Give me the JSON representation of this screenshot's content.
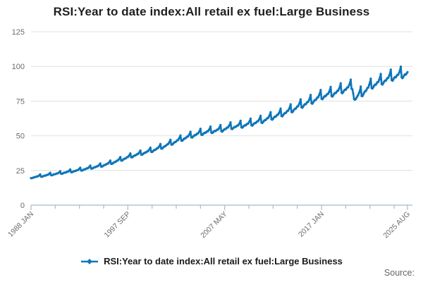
{
  "title": "RSI:Year to date index:All retail ex fuel:Large Business",
  "legend": {
    "label": "RSI:Year to date index:All retail ex fuel:Large Business"
  },
  "source_label": "Source:",
  "colors": {
    "line": "#0f76b9",
    "grid": "#e0e0e0",
    "axis": "#a9b8cc",
    "tick_text": "#6b6b6b",
    "title_text": "#1f1f1f",
    "legend_text": "#1a1a1a",
    "source_text": "#666666"
  },
  "chart_data": {
    "type": "line",
    "title": "RSI:Year to date index:All retail ex fuel:Large Business",
    "xlabel": "",
    "ylabel": "",
    "frequency": "monthly",
    "x_range": [
      "1988 JAN",
      "2025 AUG"
    ],
    "total_months": 452,
    "ylim": [
      0,
      125
    ],
    "y_ticks": [
      0,
      25,
      50,
      75,
      100,
      125
    ],
    "grid": "horizontal",
    "legend_position": "bottom-center",
    "x_axis": {
      "labeled_ticks": [
        {
          "month_index": 0,
          "label": "1988 JAN"
        },
        {
          "month_index": 116,
          "label": "1997 SEP"
        },
        {
          "month_index": 232,
          "label": "2007 MAY"
        },
        {
          "month_index": 348,
          "label": "2017 JAN"
        },
        {
          "month_index": 451,
          "label": "2025 AUG"
        }
      ],
      "minor_tick_interval_months": 29
    },
    "series": [
      {
        "name": "RSI:Year to date index:All retail ex fuel:Large Business",
        "color": "#0f76b9",
        "start": "1988 JAN",
        "end": "2025 AUG",
        "january_trend_by_year": {
          "1988": 20.3,
          "1989": 21.4,
          "1990": 22.5,
          "1991": 23.6,
          "1992": 24.8,
          "1993": 26.0,
          "1994": 27.5,
          "1995": 29.0,
          "1996": 31.0,
          "1997": 33.5,
          "1998": 36.0,
          "1999": 38.0,
          "2000": 40.0,
          "2001": 42.5,
          "2002": 45.5,
          "2003": 48.5,
          "2004": 51.0,
          "2005": 53.0,
          "2006": 54.5,
          "2007": 55.5,
          "2008": 57.5,
          "2009": 58.5,
          "2010": 60.0,
          "2011": 62.0,
          "2012": 64.5,
          "2013": 67.0,
          "2014": 70.0,
          "2015": 73.5,
          "2016": 76.5,
          "2017": 80.0,
          "2018": 82.0,
          "2019": 84.5,
          "2020": 87.0,
          "2021": 82.0,
          "2022": 88.0,
          "2023": 91.0,
          "2024": 94.0,
          "2025": 96.0,
          "2026": 97.8
        },
        "seasonal_profile": [
          -0.04,
          -0.048,
          -0.04,
          -0.03,
          -0.024,
          -0.028,
          -0.02,
          -0.012,
          -0.014,
          0.0,
          0.016,
          0.042
        ],
        "override_2020": [
          84.0,
          83.5,
          80.5,
          76.5,
          76.0,
          76.5,
          77.5,
          78.5,
          79.5,
          81.0,
          82.5,
          85.5
        ],
        "sampled_points": [
          {
            "x": "1988 JAN",
            "y": 19.5
          },
          {
            "x": "1993 JAN",
            "y": 25.0
          },
          {
            "x": "1997 SEP",
            "y": 35.2
          },
          {
            "x": "2000 JAN",
            "y": 38.4
          },
          {
            "x": "2003 AUG",
            "y": 50.0
          },
          {
            "x": "2007 MAY",
            "y": 54.7
          },
          {
            "x": "2010 JAN",
            "y": 57.6
          },
          {
            "x": "2013 JAN",
            "y": 64.3
          },
          {
            "x": "2016 DEC",
            "y": 83.0
          },
          {
            "x": "2017 JAN",
            "y": 76.8
          },
          {
            "x": "2019 DEC",
            "y": 90.0
          },
          {
            "x": "2020 APR",
            "y": 76.0
          },
          {
            "x": "2020 DEC",
            "y": 85.5
          },
          {
            "x": "2022 DEC",
            "y": 94.5
          },
          {
            "x": "2024 DEC",
            "y": 100.0
          },
          {
            "x": "2025 AUG",
            "y": 96.0
          }
        ]
      }
    ]
  }
}
